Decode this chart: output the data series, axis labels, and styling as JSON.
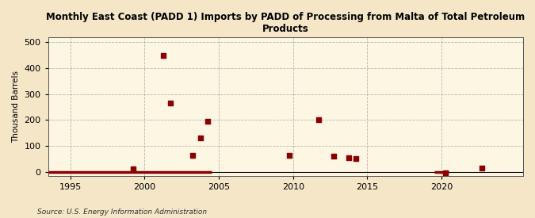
{
  "title": "Monthly East Coast (PADD 1) Imports by PADD of Processing from Malta of Total Petroleum\nProducts",
  "ylabel": "Thousand Barrels",
  "source": "Source: U.S. Energy Information Administration",
  "background_color": "#f5e6c8",
  "plot_background_color": "#fdf6e3",
  "marker_color": "#8b0000",
  "marker_size": 4,
  "xlim": [
    1993.5,
    2025.5
  ],
  "ylim": [
    -15,
    520
  ],
  "yticks": [
    0,
    100,
    200,
    300,
    400,
    500
  ],
  "xticks": [
    1995,
    2000,
    2005,
    2010,
    2015,
    2020
  ],
  "data_points": [
    [
      1999.25,
      12
    ],
    [
      2001.25,
      450
    ],
    [
      2001.75,
      265
    ],
    [
      2003.25,
      65
    ],
    [
      2003.75,
      130
    ],
    [
      2004.25,
      195
    ],
    [
      2009.75,
      65
    ],
    [
      2011.75,
      200
    ],
    [
      2012.75,
      60
    ],
    [
      2013.75,
      55
    ],
    [
      2014.25,
      50
    ],
    [
      2020.25,
      -5
    ],
    [
      2022.75,
      15
    ]
  ],
  "zero_line_segments": [
    [
      [
        1993.5,
        2004.5
      ],
      [
        0,
        0
      ]
    ],
    [
      [
        2019.5,
        2020.5
      ],
      [
        0,
        0
      ]
    ]
  ]
}
